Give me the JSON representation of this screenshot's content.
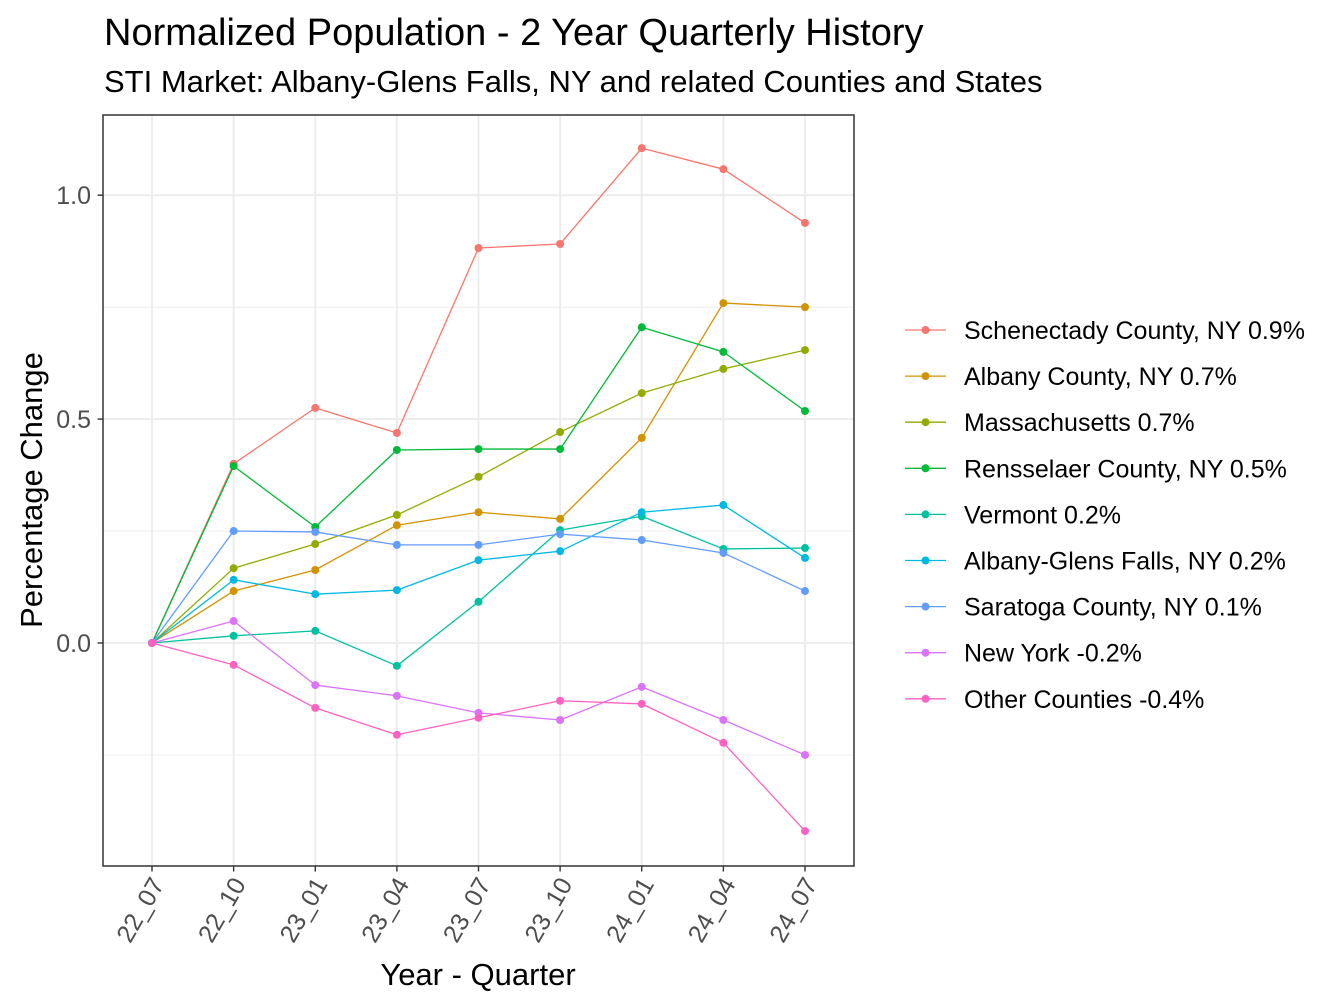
{
  "chart_data": {
    "type": "line",
    "title": "Normalized Population - 2 Year Quarterly History",
    "subtitle": "STI Market: Albany-Glens Falls, NY and related Counties and States",
    "xlabel": "Year - Quarter",
    "ylabel": "Percentage Change",
    "categories": [
      "22_07",
      "22_10",
      "23_01",
      "23_04",
      "23_07",
      "23_10",
      "24_01",
      "24_04",
      "24_07"
    ],
    "ylim": [
      -0.498,
      1.179
    ],
    "y_ticks": {
      "values": [
        0,
        0.5,
        1.0
      ],
      "labels": [
        "0.0",
        "0.5",
        "1.0"
      ]
    },
    "grid": true,
    "legend_position": "right",
    "series": [
      {
        "name": "Schenectady County, NY 0.9%",
        "color": "#F8766D",
        "values": [
          0,
          0.4,
          0.525,
          0.469,
          0.882,
          0.891,
          1.105,
          1.058,
          0.938
        ]
      },
      {
        "name": "Albany County, NY 0.7%",
        "color": "#D39200",
        "values": [
          0,
          0.116,
          0.163,
          0.263,
          0.292,
          0.277,
          0.458,
          0.759,
          0.75
        ]
      },
      {
        "name": "Massachusetts 0.7%",
        "color": "#93AA00",
        "values": [
          0,
          0.167,
          0.221,
          0.286,
          0.371,
          0.471,
          0.558,
          0.612,
          0.654
        ]
      },
      {
        "name": "Rensselaer County, NY 0.5%",
        "color": "#00BA38",
        "values": [
          0,
          0.395,
          0.259,
          0.431,
          0.433,
          0.433,
          0.705,
          0.65,
          0.518
        ]
      },
      {
        "name": "Vermont 0.2%",
        "color": "#00C19F",
        "values": [
          0,
          0.016,
          0.027,
          -0.051,
          0.092,
          0.252,
          0.283,
          0.21,
          0.212
        ]
      },
      {
        "name": "Albany-Glens Falls, NY 0.2%",
        "color": "#00B9E3",
        "values": [
          0,
          0.141,
          0.109,
          0.118,
          0.185,
          0.205,
          0.292,
          0.308,
          0.19
        ]
      },
      {
        "name": "Saratoga County, NY 0.1%",
        "color": "#619CFF",
        "values": [
          0,
          0.25,
          0.248,
          0.219,
          0.219,
          0.243,
          0.23,
          0.201,
          0.116
        ]
      },
      {
        "name": "New York -0.2%",
        "color": "#DB72FB",
        "values": [
          0,
          0.049,
          -0.094,
          -0.118,
          -0.156,
          -0.172,
          -0.098,
          -0.172,
          -0.25
        ]
      },
      {
        "name": "Other Counties -0.4%",
        "color": "#FF61C3",
        "values": [
          0,
          -0.049,
          -0.145,
          -0.205,
          -0.167,
          -0.129,
          -0.136,
          -0.223,
          -0.42
        ]
      }
    ]
  }
}
